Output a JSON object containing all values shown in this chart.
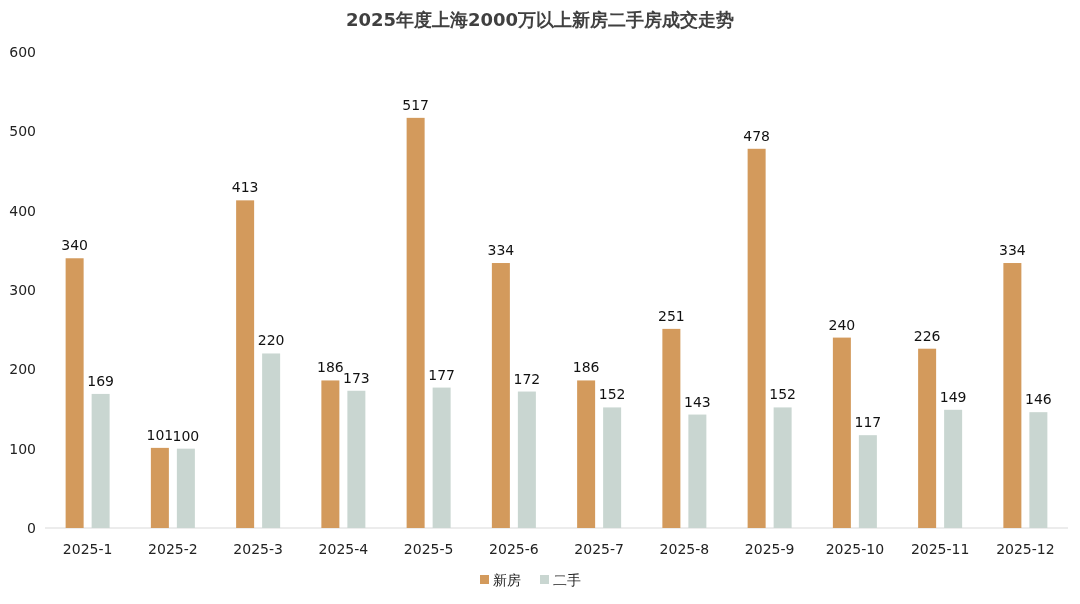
{
  "chart_data": {
    "type": "bar",
    "title": "2025年度上海2000万以上新房二手房成交走势",
    "categories": [
      "2025-1",
      "2025-2",
      "2025-3",
      "2025-4",
      "2025-5",
      "2025-6",
      "2025-7",
      "2025-8",
      "2025-9",
      "2025-10",
      "2025-11",
      "2025-12"
    ],
    "series": [
      {
        "name": "新房",
        "color": "#d39a5c",
        "values": [
          340,
          101,
          413,
          186,
          517,
          334,
          186,
          251,
          478,
          240,
          226,
          334
        ]
      },
      {
        "name": "二手",
        "color": "#c9d6d1",
        "values": [
          169,
          100,
          220,
          173,
          177,
          172,
          152,
          143,
          152,
          117,
          149,
          146
        ]
      }
    ],
    "ylim": [
      0,
      600
    ],
    "yticks": [
      0,
      100,
      200,
      300,
      400,
      500,
      600
    ],
    "data_labels": true,
    "legend": "bottom"
  }
}
